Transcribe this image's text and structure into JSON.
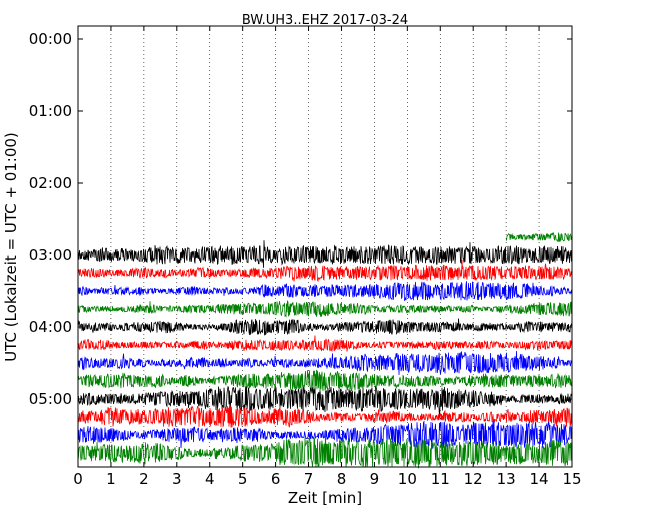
{
  "chart_data": {
    "type": "line",
    "title": "BW.UH3..EHZ 2017-03-24",
    "xlabel": "Zeit  [min]",
    "ylabel": "UTC (Lokalzeit = UTC + 01:00)",
    "xlim": [
      0,
      15
    ],
    "x_ticks": [
      "0",
      "1",
      "2",
      "3",
      "4",
      "5",
      "6",
      "7",
      "8",
      "9",
      "10",
      "11",
      "12",
      "13",
      "14",
      "15"
    ],
    "y_ticks": [
      {
        "label": "00:00",
        "hour": 0
      },
      {
        "label": "01:00",
        "hour": 1
      },
      {
        "label": "02:00",
        "hour": 2
      },
      {
        "label": "03:00",
        "hour": 3
      },
      {
        "label": "04:00",
        "hour": 4
      },
      {
        "label": "05:00",
        "hour": 5
      }
    ],
    "ylim_hours": [
      0,
      6
    ],
    "row_interval_min": 15,
    "grid": "vertical-dotted",
    "colors": [
      "#000000",
      "#ff0000",
      "#0000ff",
      "#008000"
    ],
    "traces": [
      {
        "start": "02:45",
        "color": "#008000",
        "from_min": 13.0,
        "to_min": 15,
        "amp": 0.35
      },
      {
        "start": "03:00",
        "color": "#000000",
        "from_min": 0,
        "to_min": 15,
        "amp": 0.55
      },
      {
        "start": "03:15",
        "color": "#ff0000",
        "from_min": 0,
        "to_min": 15,
        "amp": 0.45
      },
      {
        "start": "03:30",
        "color": "#0000ff",
        "from_min": 0,
        "to_min": 15,
        "amp": 0.55
      },
      {
        "start": "03:45",
        "color": "#008000",
        "from_min": 0,
        "to_min": 15,
        "amp": 0.5
      },
      {
        "start": "04:00",
        "color": "#000000",
        "from_min": 0,
        "to_min": 15,
        "amp": 0.6
      },
      {
        "start": "04:15",
        "color": "#ff0000",
        "from_min": 0,
        "to_min": 15,
        "amp": 0.55
      },
      {
        "start": "04:30",
        "color": "#0000ff",
        "from_min": 0,
        "to_min": 15,
        "amp": 0.65
      },
      {
        "start": "04:45",
        "color": "#008000",
        "from_min": 0,
        "to_min": 15,
        "amp": 0.65
      },
      {
        "start": "05:00",
        "color": "#000000",
        "from_min": 0,
        "to_min": 15,
        "amp": 0.7
      },
      {
        "start": "05:15",
        "color": "#ff0000",
        "from_min": 0,
        "to_min": 15,
        "amp": 0.75
      },
      {
        "start": "05:30",
        "color": "#0000ff",
        "from_min": 0,
        "to_min": 15,
        "amp": 0.8
      },
      {
        "start": "05:45",
        "color": "#008000",
        "from_min": 0,
        "to_min": 15,
        "amp": 0.85
      }
    ]
  }
}
